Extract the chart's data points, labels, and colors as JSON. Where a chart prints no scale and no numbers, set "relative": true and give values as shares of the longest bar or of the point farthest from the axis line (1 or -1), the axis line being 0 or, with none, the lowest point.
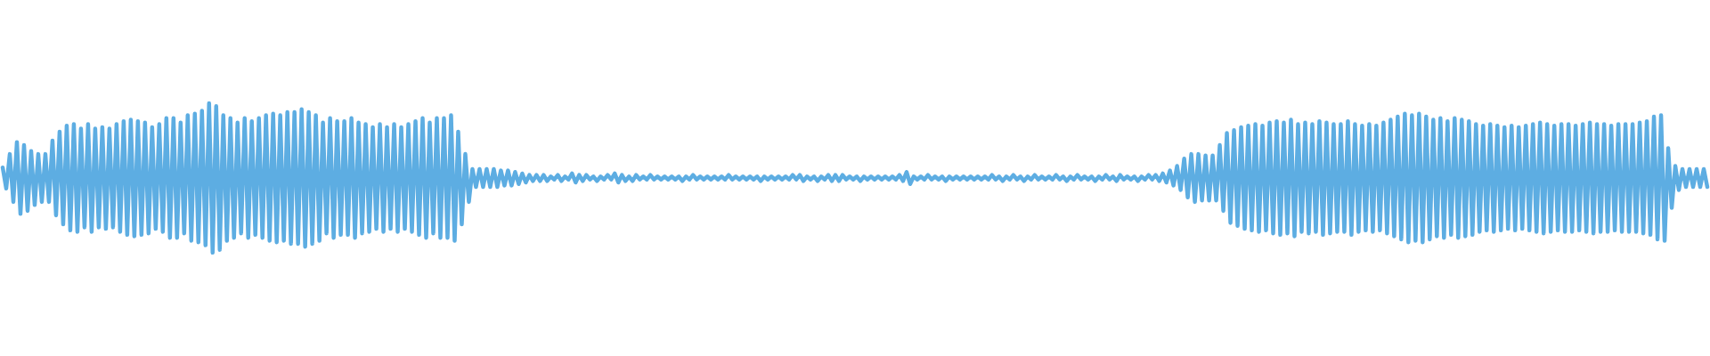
{
  "chart_data": {
    "type": "line",
    "relative": true,
    "marker": "none",
    "line_style": "solid",
    "color": "#5dade2",
    "categories": [
      null,
      null,
      null,
      null,
      null,
      null,
      null,
      null,
      null,
      null,
      null,
      null,
      null,
      null,
      null,
      null,
      null,
      null,
      null,
      null,
      null,
      null,
      null,
      null,
      null,
      null,
      null,
      null,
      null,
      null,
      null,
      null,
      null,
      null,
      null,
      null,
      null,
      null,
      null,
      null,
      null,
      null,
      null,
      null,
      null,
      null,
      null,
      null,
      null,
      null,
      null,
      null,
      null,
      null,
      null,
      null,
      null,
      null,
      null,
      null,
      null,
      null,
      null,
      null,
      null,
      null,
      null,
      null,
      null,
      null,
      null,
      null,
      null,
      null,
      null,
      null,
      null,
      null,
      null,
      null,
      null,
      null,
      null,
      null,
      null,
      null,
      null,
      null,
      null,
      null,
      null,
      null,
      null,
      null,
      null,
      null,
      null,
      null,
      null,
      null,
      null,
      null,
      null,
      null,
      null,
      null,
      null,
      null,
      null,
      null,
      null,
      null,
      null,
      null,
      null,
      null,
      null,
      null,
      null,
      null,
      null,
      null,
      null,
      null,
      null,
      null,
      null,
      null,
      null,
      null,
      null,
      null,
      null,
      null,
      null,
      null,
      null,
      null,
      null,
      null,
      null,
      null,
      null,
      null,
      null,
      null,
      null,
      null,
      null,
      null,
      null,
      null,
      null,
      null,
      null,
      null,
      null,
      null,
      null,
      null,
      null,
      null,
      null,
      null,
      null,
      null,
      null,
      null,
      null,
      null,
      null,
      null,
      null,
      null,
      null,
      null,
      null,
      null,
      null,
      null,
      null,
      null,
      null,
      null,
      null,
      null,
      null,
      null,
      null,
      null,
      null,
      null,
      null,
      null,
      null,
      null,
      null,
      null,
      null,
      null,
      null,
      null,
      null,
      null,
      null,
      null,
      null,
      null,
      null,
      null,
      null,
      null,
      null,
      null,
      null,
      null,
      null,
      null,
      null,
      null,
      null,
      null,
      null,
      null,
      null,
      null,
      null,
      null,
      null,
      null,
      null,
      null,
      null,
      null,
      null,
      null,
      null,
      null,
      null,
      null,
      null,
      null,
      null,
      null,
      null,
      null,
      null,
      null,
      null,
      null,
      null,
      null,
      null,
      null,
      null,
      null,
      null,
      null,
      null,
      null,
      null,
      null,
      null,
      null,
      null,
      null,
      null,
      null,
      null,
      null,
      null,
      null,
      null,
      null,
      null,
      null,
      null,
      null,
      null,
      null,
      null,
      null,
      null,
      null,
      null,
      null,
      null,
      null,
      null,
      null,
      null,
      null,
      null,
      null,
      null,
      null,
      null,
      null,
      null,
      null,
      null,
      null,
      null,
      null,
      null,
      null,
      null,
      null,
      null,
      null,
      null,
      null,
      null,
      null,
      null,
      null,
      null,
      null,
      null,
      null,
      null,
      null,
      null,
      null,
      null,
      null,
      null,
      null,
      null,
      null,
      null,
      null,
      null,
      null,
      null,
      null,
      null,
      null,
      null,
      null,
      null,
      null,
      null,
      null,
      null,
      null,
      null,
      null,
      null,
      null,
      null,
      null,
      null,
      null,
      null,
      null,
      null,
      null,
      null,
      null,
      null,
      null,
      null,
      null,
      null,
      null,
      null,
      null,
      null,
      null,
      null,
      null,
      null,
      null,
      null,
      null,
      null,
      null,
      null,
      null,
      null,
      null,
      null,
      null,
      null,
      null,
      null,
      null,
      null,
      null,
      null,
      null,
      null,
      null,
      null,
      null,
      null,
      null,
      null,
      null,
      null,
      null,
      null,
      null,
      null,
      null,
      null,
      null,
      null,
      null,
      null,
      null,
      null,
      null,
      null,
      null,
      null,
      null,
      null,
      null,
      null,
      null,
      null,
      null,
      null,
      null,
      null,
      null,
      null,
      null,
      null,
      null,
      null,
      null,
      null,
      null,
      null,
      null,
      null,
      null,
      null,
      null,
      null,
      null,
      null,
      null,
      null,
      null,
      null,
      null,
      null,
      null,
      null,
      null,
      null,
      null,
      null,
      null,
      null,
      null,
      null,
      null,
      null,
      null,
      null,
      null,
      null,
      null,
      null,
      null,
      null,
      null,
      null,
      null,
      null,
      null,
      null,
      null,
      null,
      null
    ],
    "values": [
      0.57,
      0.43,
      0.66,
      0.34,
      0.74,
      0.26,
      0.72,
      0.28,
      0.68,
      0.32,
      0.66,
      0.34,
      0.66,
      0.34,
      0.75,
      0.25,
      0.81,
      0.19,
      0.85,
      0.15,
      0.86,
      0.14,
      0.83,
      0.17,
      0.86,
      0.14,
      0.83,
      0.17,
      0.84,
      0.16,
      0.83,
      0.17,
      0.86,
      0.14,
      0.88,
      0.12,
      0.89,
      0.11,
      0.88,
      0.12,
      0.87,
      0.13,
      0.84,
      0.16,
      0.86,
      0.14,
      0.9,
      0.1,
      0.9,
      0.1,
      0.87,
      0.13,
      0.92,
      0.08,
      0.93,
      0.07,
      0.95,
      0.05,
      1,
      0,
      0.98,
      0.02,
      0.92,
      0.08,
      0.9,
      0.1,
      0.87,
      0.13,
      0.9,
      0.1,
      0.88,
      0.12,
      0.9,
      0.1,
      0.92,
      0.08,
      0.93,
      0.07,
      0.92,
      0.08,
      0.94,
      0.06,
      0.94,
      0.06,
      0.96,
      0.04,
      0.94,
      0.06,
      0.92,
      0.08,
      0.87,
      0.13,
      0.9,
      0.1,
      0.88,
      0.12,
      0.88,
      0.12,
      0.9,
      0.1,
      0.87,
      0.13,
      0.86,
      0.14,
      0.84,
      0.16,
      0.86,
      0.14,
      0.84,
      0.16,
      0.86,
      0.14,
      0.84,
      0.16,
      0.86,
      0.14,
      0.88,
      0.12,
      0.9,
      0.1,
      0.87,
      0.13,
      0.9,
      0.1,
      0.9,
      0.1,
      0.92,
      0.08,
      0.81,
      0.19,
      0.66,
      0.34,
      0.56,
      0.44,
      0.56,
      0.44,
      0.56,
      0.44,
      0.56,
      0.44,
      0.55,
      0.45,
      0.55,
      0.45,
      0.54,
      0.46,
      0.53,
      0.47,
      0.52,
      0.48,
      0.52,
      0.48,
      0.52,
      0.48,
      0.51,
      0.49,
      0.52,
      0.48,
      0.51,
      0.49,
      0.53,
      0.47,
      0.52,
      0.48,
      0.52,
      0.49,
      0.51,
      0.48,
      0.51,
      0.49,
      0.52,
      0.49,
      0.53,
      0.47,
      0.52,
      0.48,
      0.51,
      0.48,
      0.52,
      0.49,
      0.51,
      0.49,
      0.52,
      0.49,
      0.51,
      0.49,
      0.51,
      0.49,
      0.51,
      0.49,
      0.51,
      0.48,
      0.51,
      0.49,
      0.52,
      0.49,
      0.51,
      0.49,
      0.51,
      0.49,
      0.51,
      0.49,
      0.51,
      0.49,
      0.52,
      0.49,
      0.51,
      0.49,
      0.51,
      0.49,
      0.51,
      0.49,
      0.51,
      0.48,
      0.51,
      0.49,
      0.51,
      0.49,
      0.51,
      0.49,
      0.51,
      0.49,
      0.52,
      0.49,
      0.52,
      0.48,
      0.51,
      0.49,
      0.51,
      0.48,
      0.51,
      0.49,
      0.52,
      0.48,
      0.52,
      0.48,
      0.52,
      0.49,
      0.51,
      0.49,
      0.51,
      0.48,
      0.51,
      0.49,
      0.51,
      0.49,
      0.51,
      0.49,
      0.51,
      0.49,
      0.51,
      0.49,
      0.52,
      0.48,
      0.54,
      0.46,
      0.51,
      0.49,
      0.51,
      0.49,
      0.52,
      0.49,
      0.51,
      0.49,
      0.51,
      0.48,
      0.51,
      0.49,
      0.51,
      0.49,
      0.51,
      0.49,
      0.51,
      0.49,
      0.51,
      0.49,
      0.51,
      0.49,
      0.52,
      0.49,
      0.51,
      0.48,
      0.51,
      0.49,
      0.52,
      0.49,
      0.51,
      0.48,
      0.51,
      0.49,
      0.52,
      0.49,
      0.51,
      0.49,
      0.51,
      0.49,
      0.52,
      0.49,
      0.51,
      0.48,
      0.51,
      0.49,
      0.52,
      0.49,
      0.51,
      0.49,
      0.51,
      0.48,
      0.51,
      0.49,
      0.52,
      0.49,
      0.51,
      0.48,
      0.52,
      0.49,
      0.51,
      0.49,
      0.51,
      0.48,
      0.51,
      0.49,
      0.52,
      0.49,
      0.52,
      0.48,
      0.53,
      0.47,
      0.55,
      0.45,
      0.58,
      0.42,
      0.63,
      0.37,
      0.66,
      0.34,
      0.66,
      0.35,
      0.65,
      0.35,
      0.65,
      0.35,
      0.72,
      0.28,
      0.8,
      0.2,
      0.82,
      0.18,
      0.84,
      0.16,
      0.85,
      0.15,
      0.86,
      0.14,
      0.85,
      0.15,
      0.87,
      0.13,
      0.88,
      0.12,
      0.87,
      0.13,
      0.89,
      0.11,
      0.86,
      0.14,
      0.87,
      0.13,
      0.86,
      0.14,
      0.88,
      0.12,
      0.87,
      0.13,
      0.86,
      0.14,
      0.86,
      0.14,
      0.88,
      0.12,
      0.86,
      0.14,
      0.85,
      0.15,
      0.86,
      0.14,
      0.85,
      0.15,
      0.87,
      0.13,
      0.89,
      0.11,
      0.91,
      0.09,
      0.93,
      0.07,
      0.92,
      0.08,
      0.93,
      0.07,
      0.91,
      0.09,
      0.89,
      0.11,
      0.9,
      0.1,
      0.88,
      0.12,
      0.9,
      0.1,
      0.89,
      0.11,
      0.88,
      0.12,
      0.86,
      0.14,
      0.85,
      0.15,
      0.86,
      0.14,
      0.85,
      0.15,
      0.84,
      0.16,
      0.85,
      0.15,
      0.84,
      0.16,
      0.85,
      0.15,
      0.86,
      0.14,
      0.87,
      0.13,
      0.86,
      0.14,
      0.85,
      0.15,
      0.86,
      0.14,
      0.86,
      0.14,
      0.85,
      0.15,
      0.86,
      0.14,
      0.87,
      0.13,
      0.86,
      0.14,
      0.86,
      0.14,
      0.85,
      0.15,
      0.86,
      0.14,
      0.86,
      0.14,
      0.86,
      0.14,
      0.87,
      0.13,
      0.88,
      0.12,
      0.91,
      0.09,
      0.92,
      0.08,
      0.7,
      0.3,
      0.58,
      0.42,
      0.56,
      0.44,
      0.56,
      0.44,
      0.56,
      0.44,
      0.56,
      0.44
    ]
  }
}
